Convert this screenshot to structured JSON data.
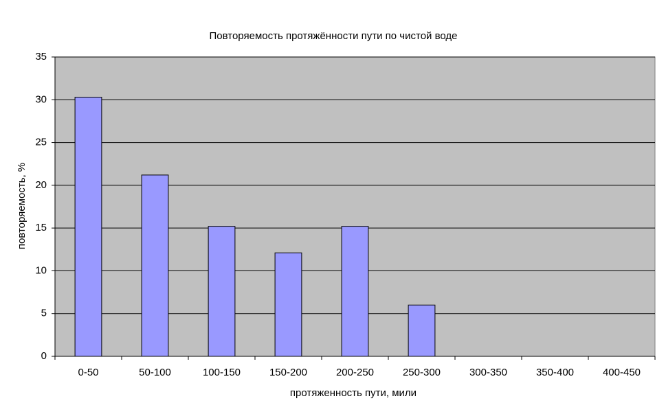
{
  "chart_data": {
    "type": "bar",
    "title": "Повторяемость протяжённости пути по чистой воде",
    "x_label": "протяженность пути, мили",
    "y_label": "повторяемость, %",
    "categories": [
      "0-50",
      "50-100",
      "100-150",
      "150-200",
      "200-250",
      "250-300",
      "300-350",
      "350-400",
      "400-450"
    ],
    "values": [
      30.3,
      21.2,
      15.2,
      12.1,
      15.2,
      6.0,
      0,
      0,
      0
    ],
    "color": "#9999ff",
    "plot_background": "#c0c0c0",
    "ylim": [
      0,
      35
    ],
    "yticks": [
      0,
      5,
      10,
      15,
      20,
      25,
      30,
      35
    ],
    "grid": true
  }
}
